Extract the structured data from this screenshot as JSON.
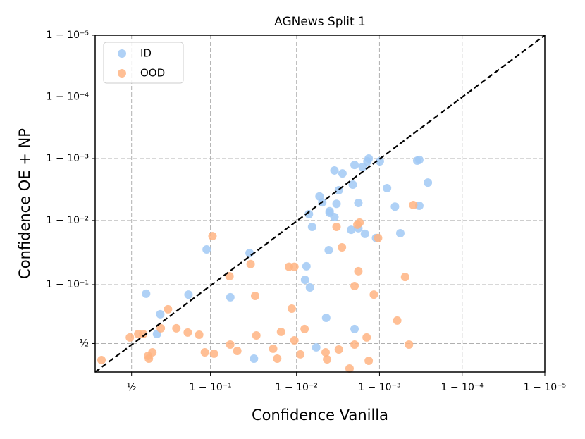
{
  "chart_data": {
    "type": "scatter",
    "title": "AGNews Split 1",
    "xlabel": "Confidence Vanilla",
    "ylabel": "Confidence OE + NP",
    "xscale": "logit",
    "yscale": "logit",
    "grid": true,
    "legend": "upper left",
    "xlim": [
      0.266,
      0.99999
    ],
    "ylim": [
      0.256,
      0.99999
    ],
    "xticks": [
      {
        "value": 0.5,
        "label": "½"
      },
      {
        "value": 0.9,
        "label": "1 − 10⁻¹"
      },
      {
        "value": 0.99,
        "label": "1 − 10⁻²"
      },
      {
        "value": 0.999,
        "label": "1 − 10⁻³"
      },
      {
        "value": 0.9999,
        "label": "1 − 10⁻⁴"
      },
      {
        "value": 0.99999,
        "label": "1 − 10⁻⁵"
      }
    ],
    "yticks": [
      {
        "value": 0.5,
        "label": "½"
      },
      {
        "value": 0.9,
        "label": "1 − 10⁻¹"
      },
      {
        "value": 0.99,
        "label": "1 − 10⁻²"
      },
      {
        "value": 0.999,
        "label": "1 − 10⁻³"
      },
      {
        "value": 0.9999,
        "label": "1 − 10⁻⁴"
      },
      {
        "value": 0.99999,
        "label": "1 − 10⁻⁵"
      }
    ],
    "series": [
      {
        "name": "ID",
        "color": "#a1c9f4",
        "x": [
          0.6,
          0.69,
          0.67,
          0.83,
          0.89,
          0.94,
          0.964,
          0.968,
          0.9924,
          0.9921,
          0.9931,
          0.9935,
          0.9929,
          0.9947,
          0.9951,
          0.996,
          0.996,
          0.9965,
          0.9967,
          0.9965,
          0.9972,
          0.9969,
          0.9959,
          0.9956,
          0.9942,
          0.9978,
          0.9979,
          0.998,
          0.9982,
          0.9982,
          0.9984,
          0.9985,
          0.9986,
          0.99865,
          0.9989,
          0.99901,
          0.99919,
          0.99935,
          0.99944,
          0.99965,
          0.99967,
          0.99967,
          0.99974,
          0.998
        ],
        "y": [
          0.865,
          0.749,
          0.588,
          0.861,
          0.971,
          0.849,
          0.967,
          0.362,
          0.947,
          0.915,
          0.89,
          0.9873,
          0.9921,
          0.9959,
          0.9949,
          0.9929,
          0.99247,
          0.9912,
          0.9946,
          0.99844,
          0.99826,
          0.99674,
          0.9703,
          0.723,
          0.464,
          0.9859,
          0.99736,
          0.99873,
          0.9867,
          0.99478,
          0.99863,
          0.9836,
          0.99889,
          0.999,
          0.9809,
          0.99889,
          0.99699,
          0.994,
          0.984,
          0.99892,
          0.99895,
          0.9942,
          0.99755,
          0.632
        ]
      },
      {
        "name": "OOD",
        "color": "#ffb482",
        "x": [
          0.302,
          0.488,
          0.546,
          0.58,
          0.613,
          0.618,
          0.641,
          0.693,
          0.734,
          0.777,
          0.827,
          0.868,
          0.885,
          0.905,
          0.9085,
          0.9387,
          0.9398,
          0.95,
          0.969,
          0.97,
          0.965,
          0.981,
          0.983,
          0.9847,
          0.9877,
          0.9894,
          0.9886,
          0.9894,
          0.991,
          0.992,
          0.99553,
          0.99571,
          0.9967,
          0.9969,
          0.99716,
          0.9977,
          0.998,
          0.998,
          0.99815,
          0.99826,
          0.9982,
          0.99857,
          0.99865,
          0.99883,
          0.99896,
          0.99939,
          0.99951,
          0.99956,
          0.99961
        ],
        "y": [
          0.35,
          0.556,
          0.588,
          0.588,
          0.387,
          0.362,
          0.418,
          0.638,
          0.782,
          0.638,
          0.601,
          0.581,
          0.418,
          0.9822,
          0.406,
          0.925,
          0.49,
          0.431,
          0.855,
          0.575,
          0.951,
          0.451,
          0.362,
          0.607,
          0.946,
          0.946,
          0.786,
          0.529,
          0.4,
          0.632,
          0.418,
          0.356,
          0.9873,
          0.444,
          0.9732,
          0.282,
          0.895,
          0.49,
          0.9883,
          0.9892,
          0.937,
          0.556,
          0.344,
          0.861,
          0.9809,
          0.702,
          0.923,
          0.49,
          0.99435
        ]
      }
    ]
  }
}
